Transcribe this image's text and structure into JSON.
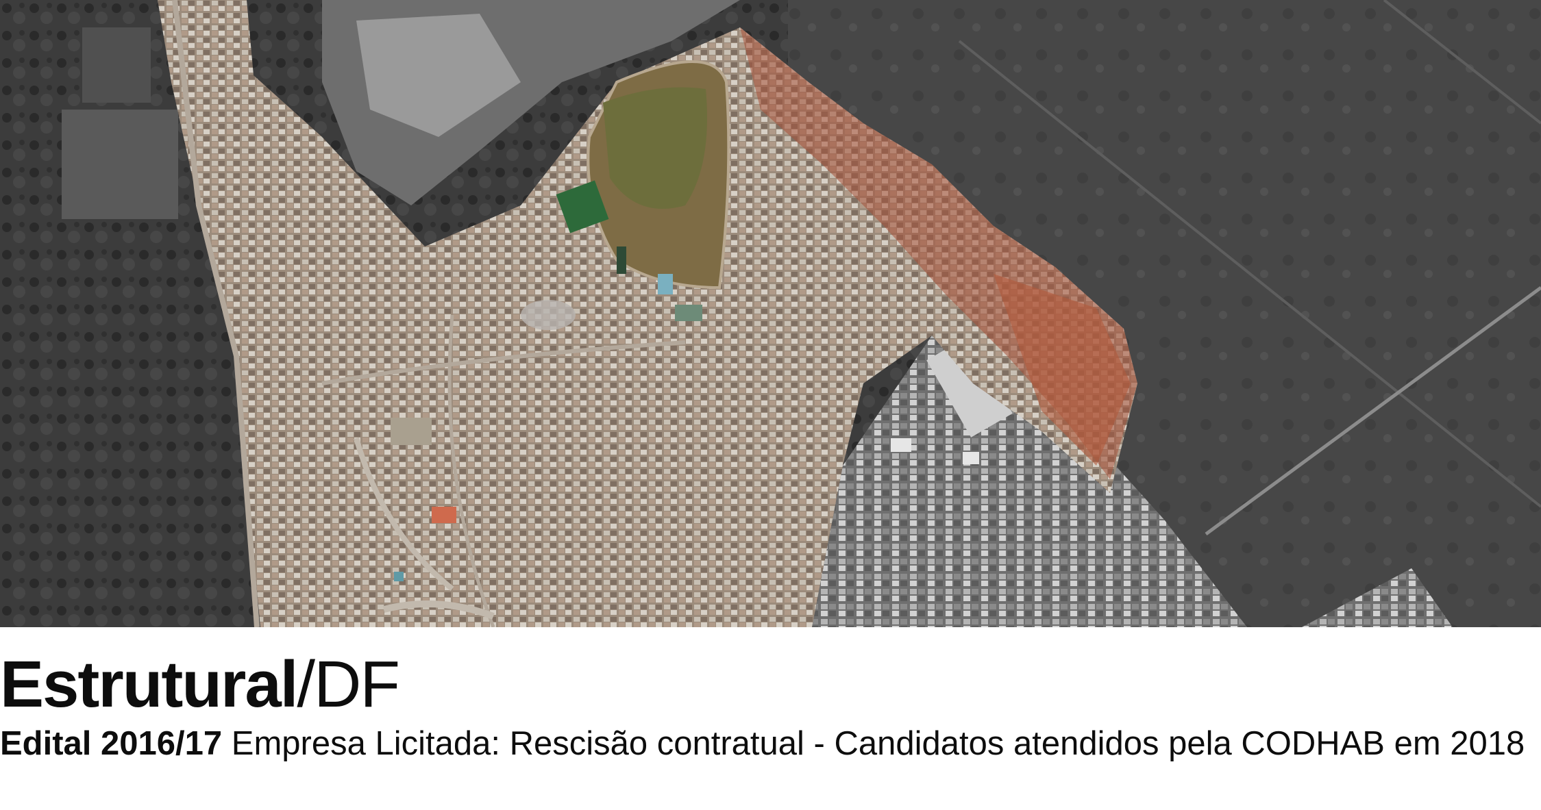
{
  "title": {
    "place": "Estrutural",
    "separator": "/",
    "state": "DF"
  },
  "subtitle": {
    "edital": "Edital 2016/17",
    "description": "Empresa Licitada: Rescisão contratual - Candidatos atendidos pela CODHAB em 2018"
  },
  "colors": {
    "highlight_area": "#a8523a",
    "background": "#ffffff",
    "text": "#0d0d0d"
  }
}
